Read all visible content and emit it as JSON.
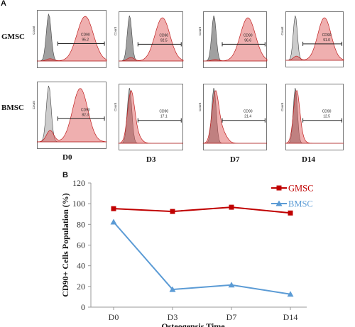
{
  "figure": {
    "panel_a_label": "A",
    "panel_b_label": "B",
    "row_labels": [
      "GMSC",
      "BMSC"
    ],
    "column_labels": [
      "D0",
      "D3",
      "D7",
      "D14"
    ]
  },
  "chart_data": [
    {
      "type": "histogram-grid",
      "marker": "CD90",
      "axis_label": "Count",
      "rows": [
        {
          "name": "GMSC",
          "panels": [
            {
              "day": "D0",
              "value": "95.2"
            },
            {
              "day": "D3",
              "value": "92.5"
            },
            {
              "day": "D7",
              "value": "96.6"
            },
            {
              "day": "D14",
              "value": "91.0"
            }
          ]
        },
        {
          "name": "BMSC",
          "panels": [
            {
              "day": "D0",
              "value": "82.3"
            },
            {
              "day": "D3",
              "value": "17.1"
            },
            {
              "day": "D7",
              "value": "21.4"
            },
            {
              "day": "D14",
              "value": "12.5"
            }
          ]
        }
      ],
      "colors": {
        "control": "#808080",
        "stained": "#e06060"
      }
    },
    {
      "type": "line",
      "categories": [
        "D0",
        "D3",
        "D7",
        "D14"
      ],
      "series": [
        {
          "name": "GMSC",
          "values": [
            95.2,
            92.5,
            96.6,
            91.0
          ],
          "color": "#c00000",
          "marker": "square"
        },
        {
          "name": "BMSC",
          "values": [
            82.3,
            17.1,
            21.4,
            12.5
          ],
          "color": "#5b9bd5",
          "marker": "triangle"
        }
      ],
      "xlabel": "Osteogensis Time",
      "ylabel": "CD90+ Cells Population (%)",
      "ylim": [
        0,
        120
      ],
      "yticks": [
        "0",
        "20",
        "40",
        "60",
        "80",
        "100",
        "120"
      ],
      "legend_position": "top-right",
      "grid": false
    }
  ]
}
